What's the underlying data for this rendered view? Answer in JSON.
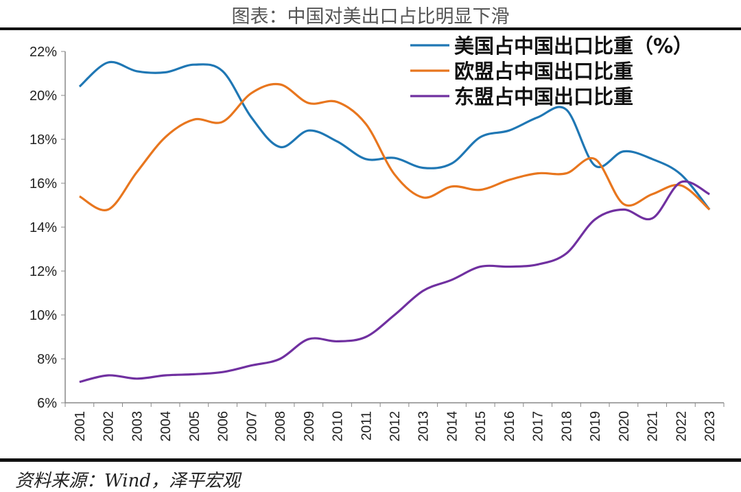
{
  "title": "图表：中国对美出口占比明显下滑",
  "source": "资料来源：Wind，泽平宏观",
  "chart_data": {
    "type": "line",
    "title": "图表：中国对美出口占比明显下滑",
    "xlabel": "",
    "ylabel": "",
    "ylim": [
      6,
      22
    ],
    "yticks": [
      "6%",
      "8%",
      "10%",
      "12%",
      "14%",
      "16%",
      "18%",
      "20%",
      "22%"
    ],
    "grid": false,
    "legend_position": "top-right",
    "categories": [
      "2001",
      "2002",
      "2003",
      "2004",
      "2005",
      "2006",
      "2007",
      "2008",
      "2009",
      "2010",
      "2011",
      "2012",
      "2013",
      "2014",
      "2015",
      "2016",
      "2017",
      "2018",
      "2019",
      "2020",
      "2021",
      "2022",
      "2023"
    ],
    "series": [
      {
        "name": "美国占中国出口比重（%）",
        "color": "#1f77b4",
        "values": [
          20.4,
          21.5,
          21.1,
          21.05,
          21.4,
          21.1,
          19.0,
          17.65,
          18.4,
          17.9,
          17.1,
          17.15,
          16.7,
          16.9,
          18.1,
          18.4,
          19.0,
          19.35,
          16.8,
          17.45,
          17.1,
          16.4,
          14.8
        ]
      },
      {
        "name": "欧盟占中国出口比重",
        "color": "#e8761e",
        "values": [
          15.4,
          14.8,
          16.5,
          18.1,
          18.9,
          18.8,
          20.1,
          20.5,
          19.65,
          19.7,
          18.7,
          16.4,
          15.35,
          15.85,
          15.7,
          16.15,
          16.45,
          16.45,
          17.1,
          15.05,
          15.5,
          15.9,
          14.8
        ]
      },
      {
        "name": "东盟占中国出口比重",
        "color": "#7030a0",
        "values": [
          6.95,
          7.25,
          7.1,
          7.25,
          7.3,
          7.4,
          7.7,
          8.0,
          8.9,
          8.8,
          9.0,
          10.0,
          11.1,
          11.6,
          12.2,
          12.2,
          12.3,
          12.8,
          14.35,
          14.8,
          14.4,
          16.05,
          15.5
        ]
      }
    ]
  }
}
